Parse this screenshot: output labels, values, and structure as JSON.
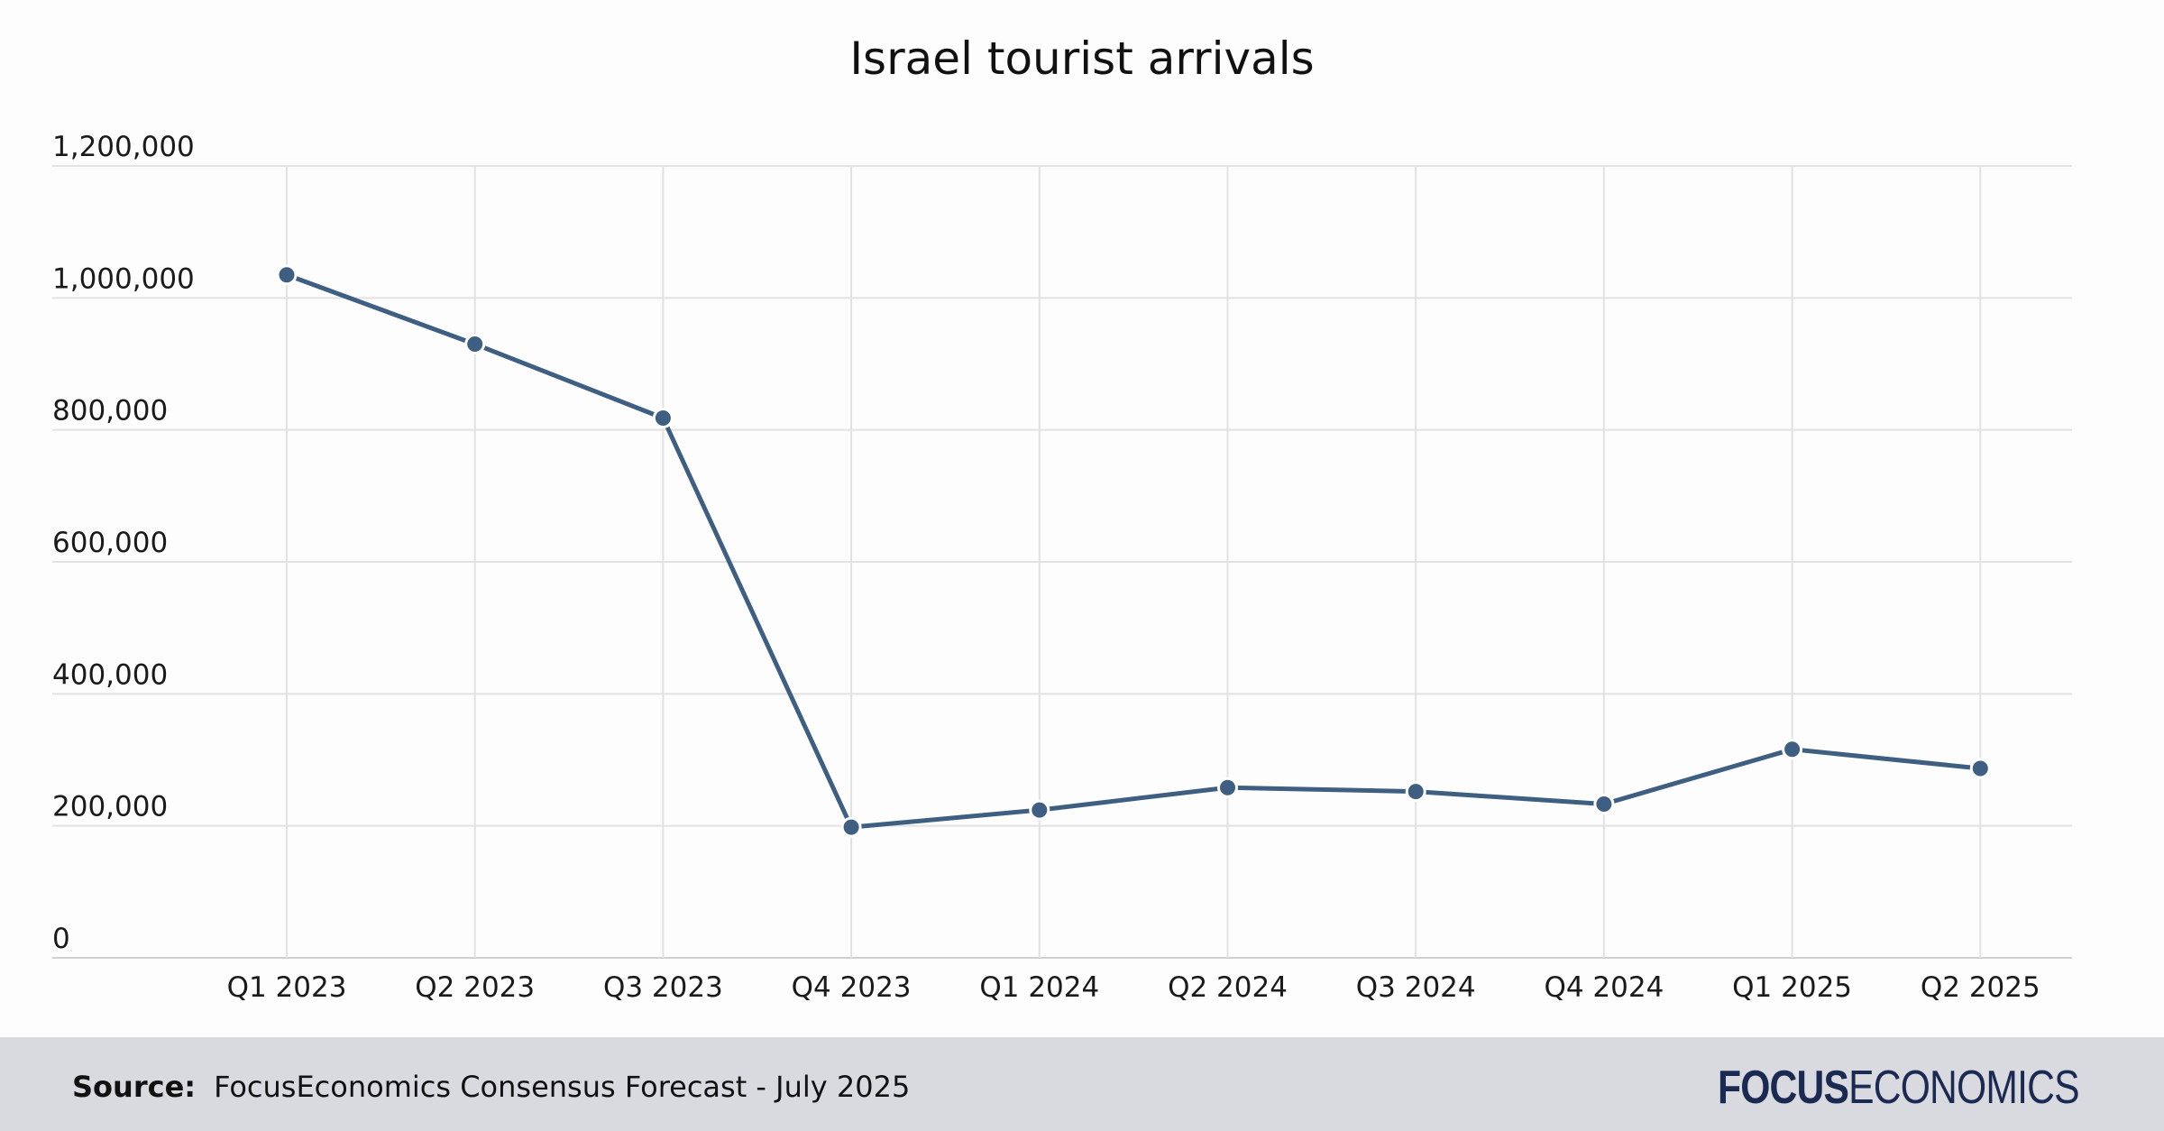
{
  "chart_data": {
    "type": "line",
    "title": "Israel tourist arrivals",
    "categories": [
      "Q1 2023",
      "Q2 2023",
      "Q3 2023",
      "Q4 2023",
      "Q1 2024",
      "Q2 2024",
      "Q3 2024",
      "Q4 2024",
      "Q1 2025",
      "Q2 2025"
    ],
    "series": [
      {
        "values": [
          1035000,
          930000,
          818000,
          198000,
          224000,
          258000,
          252000,
          233000,
          316000,
          287000
        ]
      }
    ],
    "ylim": [
      0,
      1200000
    ],
    "y_ticks": [
      0,
      200000,
      400000,
      600000,
      800000,
      1000000,
      1200000
    ],
    "y_tick_labels": [
      "0",
      "200,000",
      "400,000",
      "600,000",
      "800,000",
      "1,000,000",
      "1,200,000"
    ],
    "grid": true,
    "line_color": "#3f5f82",
    "grid_color": "#e2e2e2"
  },
  "footer": {
    "source_label": "Source:",
    "source_text": "FocusEconomics Consensus Forecast - July 2025",
    "logo_bold": "FOCUS",
    "logo_light": "ECONOMICS"
  }
}
